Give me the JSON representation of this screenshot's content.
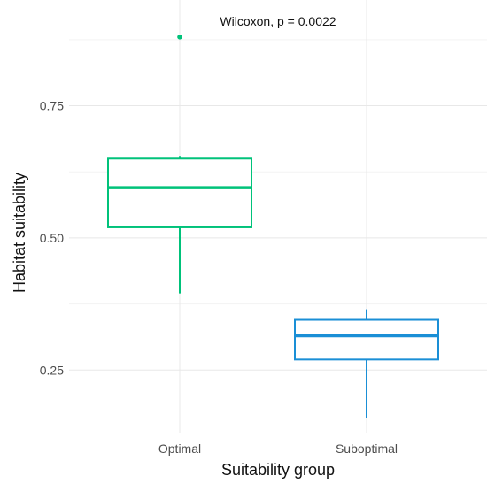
{
  "chart_data": {
    "type": "box",
    "title": "",
    "xlabel": "Suitability group",
    "ylabel": "Habitat suitability",
    "ylim": [
      0.13,
      0.95
    ],
    "yticks": [
      0.25,
      0.5,
      0.75
    ],
    "ytick_labels": [
      "0.25",
      "0.50",
      "0.75"
    ],
    "grid": true,
    "legend": "none",
    "annotation": "Wilcoxon, p = 0.0022",
    "categories": [
      "Optimal",
      "Suboptimal"
    ],
    "boxes": [
      {
        "category": "Optimal",
        "color": "#00c27a",
        "whisker_low": 0.395,
        "q1": 0.52,
        "median": 0.595,
        "q3": 0.65,
        "whisker_high": 0.655,
        "outliers": [
          0.88
        ]
      },
      {
        "category": "Suboptimal",
        "color": "#1a8fd6",
        "whisker_low": 0.16,
        "q1": 0.27,
        "median": 0.315,
        "q3": 0.345,
        "whisker_high": 0.365,
        "outliers": []
      }
    ]
  }
}
